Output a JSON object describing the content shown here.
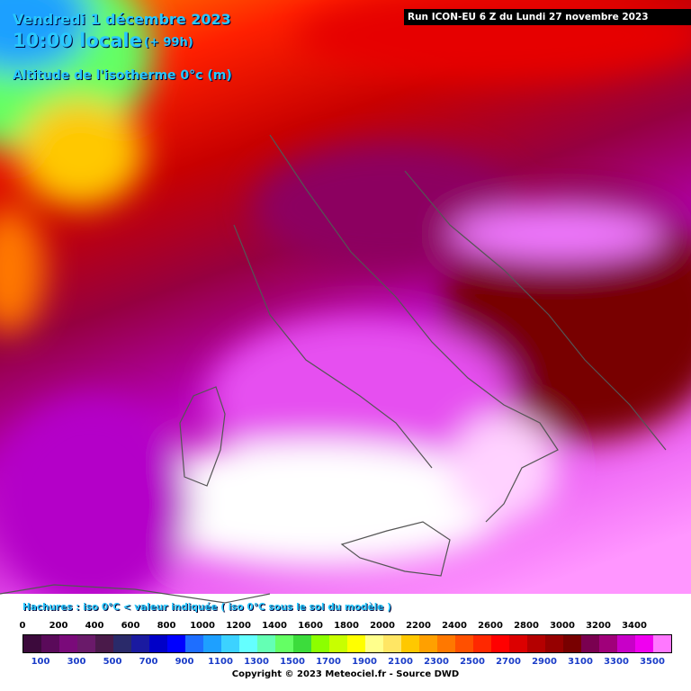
{
  "header": {
    "date": "Vendredi 1 décembre 2023",
    "time": "10:00 locale",
    "lead": "(+ 99h)",
    "parameter": "Altitude de l'isotherme 0°c (m)",
    "run": "Run ICON-EU 6 Z du Lundi 27 novembre 2023"
  },
  "legend": {
    "note": "Hachures : iso 0°C < valeur indiquée ( iso 0°C sous le sol du modèle )",
    "top_labels": [
      0,
      200,
      400,
      600,
      800,
      1000,
      1200,
      1400,
      1600,
      1800,
      2000,
      2200,
      2400,
      2600,
      2800,
      3000,
      3200,
      3400
    ],
    "bottom_labels": [
      100,
      300,
      500,
      700,
      900,
      1100,
      1300,
      1500,
      1700,
      1900,
      2100,
      2300,
      2500,
      2700,
      2900,
      3100,
      3300,
      3500
    ],
    "colors": [
      "#3c0a3c",
      "#5a0a5a",
      "#7a0a7a",
      "#6a1a6a",
      "#4a1a4a",
      "#2a2a6a",
      "#1a1aa0",
      "#0000c8",
      "#0000ff",
      "#1e6eff",
      "#1ea0ff",
      "#3cd2ff",
      "#64ffff",
      "#64ffb4",
      "#64ff64",
      "#3cdc3c",
      "#8cff00",
      "#c8ff00",
      "#ffff00",
      "#ffff8c",
      "#ffe664",
      "#ffc800",
      "#ffa000",
      "#ff7800",
      "#ff5000",
      "#ff2800",
      "#ff0000",
      "#dc0000",
      "#b40000",
      "#960000",
      "#780000",
      "#7a0050",
      "#a0007a",
      "#c800c8",
      "#f000f0",
      "#ff78ff"
    ]
  },
  "footer": {
    "copyright": "Copyright © 2023 Meteociel.fr - Source DWD"
  }
}
